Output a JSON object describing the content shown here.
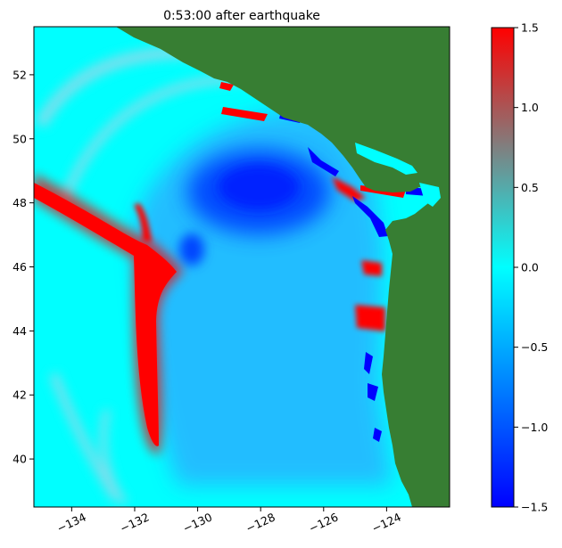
{
  "chart_data": {
    "type": "heatmap",
    "title": "0:53:00 after earthquake",
    "xlabel": "",
    "ylabel": "",
    "xlim": [
      -135.2,
      -122.0
    ],
    "ylim": [
      38.5,
      53.5
    ],
    "x_ticks": [
      -134,
      -132,
      -130,
      -128,
      -126,
      -124
    ],
    "x_tick_labels": [
      "−134",
      "−132",
      "−130",
      "−128",
      "−126",
      "−124"
    ],
    "y_ticks": [
      40,
      42,
      44,
      46,
      48,
      50,
      52
    ],
    "y_tick_labels": [
      "40",
      "42",
      "44",
      "46",
      "48",
      "50",
      "52"
    ],
    "colorbar": {
      "range": [
        -1.5,
        1.5
      ],
      "ticks": [
        -1.5,
        -1.0,
        -0.5,
        0.0,
        0.5,
        1.0,
        1.5
      ],
      "tick_labels": [
        "−1.5",
        "−1.0",
        "−0.5",
        "0.0",
        "0.5",
        "1.0",
        "1.5"
      ],
      "colors": [
        "#0000ff",
        "#00ffff",
        "#ff0000"
      ]
    },
    "land_color": "#377e33",
    "ocean_background_color": "#00ffff",
    "features": [
      {
        "name": "outer leading wave",
        "value": 0.5
      },
      {
        "name": "main crest",
        "value": 1.5
      },
      {
        "name": "trough off Vancouver Island",
        "value": -1.5
      },
      {
        "name": "coastal crests",
        "value": 1.5
      }
    ]
  }
}
